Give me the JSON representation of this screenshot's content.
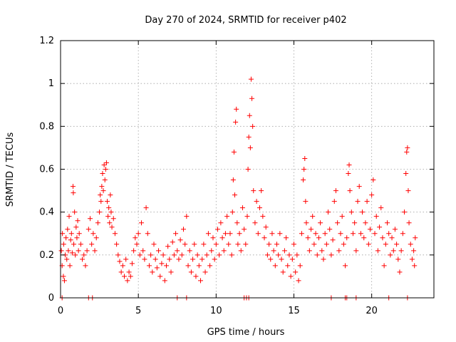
{
  "chart_data": {
    "type": "scatter",
    "title": "Day 270 of 2024, SRMTID for receiver p402",
    "xlabel": "GPS time / hours",
    "ylabel": "SRMTID / TECUs",
    "xlim": [
      0,
      24
    ],
    "ylim": [
      0,
      1.2
    ],
    "x_ticks": [
      0,
      5,
      10,
      15,
      20
    ],
    "x_tick_labels": [
      "0",
      "5",
      "10",
      "15",
      "20"
    ],
    "y_ticks": [
      0,
      0.2,
      0.4,
      0.6,
      0.8,
      1.0,
      1.2
    ],
    "y_tick_labels": [
      "0",
      "0.2",
      "0.4",
      "0.6",
      "0.8",
      "1",
      "1.2"
    ],
    "grid": true,
    "marker": "+",
    "series": [
      {
        "name": "SRMTID",
        "color": "#ff0000",
        "points": [
          [
            0.05,
            0.22
          ],
          [
            0.1,
            0.15
          ],
          [
            0.12,
            0.3
          ],
          [
            0.18,
            0.1
          ],
          [
            0.2,
            0.25
          ],
          [
            0.25,
            0.08
          ],
          [
            0.3,
            0.2
          ],
          [
            0.35,
            0.28
          ],
          [
            0.4,
            0.18
          ],
          [
            0.45,
            0.32
          ],
          [
            0.5,
            0.22
          ],
          [
            0.55,
            0.38
          ],
          [
            0.6,
            0.15
          ],
          [
            0.65,
            0.27
          ],
          [
            0.7,
            0.3
          ],
          [
            0.75,
            0.21
          ],
          [
            0.8,
            0.52
          ],
          [
            0.82,
            0.49
          ],
          [
            0.85,
            0.25
          ],
          [
            0.9,
            0.4
          ],
          [
            0.95,
            0.2
          ],
          [
            1.0,
            0.33
          ],
          [
            1.05,
            0.28
          ],
          [
            1.1,
            0.36
          ],
          [
            1.15,
            0.22
          ],
          [
            1.2,
            0.3
          ],
          [
            1.3,
            0.25
          ],
          [
            1.4,
            0.18
          ],
          [
            1.5,
            0.2
          ],
          [
            1.6,
            0.15
          ],
          [
            1.7,
            0.22
          ],
          [
            1.8,
            0.32
          ],
          [
            1.9,
            0.37
          ],
          [
            2.0,
            0.25
          ],
          [
            2.1,
            0.3
          ],
          [
            2.2,
            0.22
          ],
          [
            2.3,
            0.28
          ],
          [
            2.4,
            0.35
          ],
          [
            2.5,
            0.4
          ],
          [
            2.55,
            0.48
          ],
          [
            2.6,
            0.45
          ],
          [
            2.65,
            0.52
          ],
          [
            2.7,
            0.58
          ],
          [
            2.75,
            0.5
          ],
          [
            2.8,
            0.62
          ],
          [
            2.85,
            0.55
          ],
          [
            2.9,
            0.6
          ],
          [
            2.95,
            0.63
          ],
          [
            3.0,
            0.45
          ],
          [
            3.05,
            0.38
          ],
          [
            3.1,
            0.42
          ],
          [
            3.15,
            0.35
          ],
          [
            3.2,
            0.48
          ],
          [
            3.25,
            0.4
          ],
          [
            3.3,
            0.33
          ],
          [
            3.4,
            0.37
          ],
          [
            3.5,
            0.3
          ],
          [
            3.6,
            0.25
          ],
          [
            3.7,
            0.2
          ],
          [
            3.8,
            0.17
          ],
          [
            3.9,
            0.12
          ],
          [
            4.0,
            0.15
          ],
          [
            4.1,
            0.1
          ],
          [
            4.2,
            0.18
          ],
          [
            4.3,
            0.08
          ],
          [
            4.4,
            0.12
          ],
          [
            4.5,
            0.1
          ],
          [
            4.6,
            0.16
          ],
          [
            4.7,
            0.22
          ],
          [
            4.8,
            0.28
          ],
          [
            4.9,
            0.25
          ],
          [
            5.0,
            0.3
          ],
          [
            5.1,
            0.2
          ],
          [
            5.2,
            0.35
          ],
          [
            5.3,
            0.22
          ],
          [
            5.4,
            0.18
          ],
          [
            5.5,
            0.42
          ],
          [
            5.6,
            0.3
          ],
          [
            5.7,
            0.15
          ],
          [
            5.8,
            0.2
          ],
          [
            5.9,
            0.12
          ],
          [
            6.0,
            0.25
          ],
          [
            6.1,
            0.18
          ],
          [
            6.2,
            0.14
          ],
          [
            6.3,
            0.22
          ],
          [
            6.4,
            0.1
          ],
          [
            6.5,
            0.16
          ],
          [
            6.6,
            0.2
          ],
          [
            6.7,
            0.08
          ],
          [
            6.8,
            0.15
          ],
          [
            6.9,
            0.24
          ],
          [
            7.0,
            0.18
          ],
          [
            7.1,
            0.12
          ],
          [
            7.2,
            0.26
          ],
          [
            7.3,
            0.2
          ],
          [
            7.4,
            0.3
          ],
          [
            7.5,
            0.22
          ],
          [
            7.6,
            0.18
          ],
          [
            7.7,
            0.27
          ],
          [
            7.8,
            0.2
          ],
          [
            7.9,
            0.32
          ],
          [
            8.0,
            0.25
          ],
          [
            8.1,
            0.38
          ],
          [
            8.2,
            0.15
          ],
          [
            8.3,
            0.22
          ],
          [
            8.4,
            0.12
          ],
          [
            8.5,
            0.18
          ],
          [
            8.6,
            0.25
          ],
          [
            8.7,
            0.1
          ],
          [
            8.8,
            0.2
          ],
          [
            8.9,
            0.15
          ],
          [
            9.0,
            0.08
          ],
          [
            9.1,
            0.18
          ],
          [
            9.2,
            0.25
          ],
          [
            9.3,
            0.12
          ],
          [
            9.4,
            0.2
          ],
          [
            9.5,
            0.3
          ],
          [
            9.6,
            0.15
          ],
          [
            9.7,
            0.22
          ],
          [
            9.8,
            0.28
          ],
          [
            9.9,
            0.18
          ],
          [
            10.0,
            0.25
          ],
          [
            10.1,
            0.32
          ],
          [
            10.2,
            0.2
          ],
          [
            10.3,
            0.35
          ],
          [
            10.4,
            0.28
          ],
          [
            10.5,
            0.22
          ],
          [
            10.6,
            0.3
          ],
          [
            10.7,
            0.38
          ],
          [
            10.8,
            0.25
          ],
          [
            10.9,
            0.3
          ],
          [
            11.0,
            0.2
          ],
          [
            11.05,
            0.4
          ],
          [
            11.1,
            0.55
          ],
          [
            11.15,
            0.68
          ],
          [
            11.2,
            0.48
          ],
          [
            11.25,
            0.82
          ],
          [
            11.3,
            0.88
          ],
          [
            11.35,
            0.35
          ],
          [
            11.4,
            0.25
          ],
          [
            11.5,
            0.3
          ],
          [
            11.6,
            0.22
          ],
          [
            11.7,
            0.42
          ],
          [
            11.8,
            0.32
          ],
          [
            11.9,
            0.25
          ],
          [
            12.0,
            0.38
          ],
          [
            12.05,
            0.6
          ],
          [
            12.1,
            0.75
          ],
          [
            12.15,
            0.85
          ],
          [
            12.2,
            0.7
          ],
          [
            12.25,
            1.02
          ],
          [
            12.3,
            0.93
          ],
          [
            12.35,
            0.8
          ],
          [
            12.4,
            0.5
          ],
          [
            12.5,
            0.35
          ],
          [
            12.6,
            0.45
          ],
          [
            12.7,
            0.3
          ],
          [
            12.8,
            0.42
          ],
          [
            12.9,
            0.5
          ],
          [
            13.0,
            0.38
          ],
          [
            13.1,
            0.28
          ],
          [
            13.2,
            0.33
          ],
          [
            13.3,
            0.2
          ],
          [
            13.4,
            0.25
          ],
          [
            13.5,
            0.18
          ],
          [
            13.6,
            0.3
          ],
          [
            13.7,
            0.22
          ],
          [
            13.8,
            0.15
          ],
          [
            13.9,
            0.25
          ],
          [
            14.0,
            0.2
          ],
          [
            14.1,
            0.3
          ],
          [
            14.2,
            0.18
          ],
          [
            14.3,
            0.12
          ],
          [
            14.4,
            0.22
          ],
          [
            14.5,
            0.28
          ],
          [
            14.6,
            0.15
          ],
          [
            14.7,
            0.2
          ],
          [
            14.8,
            0.1
          ],
          [
            14.9,
            0.18
          ],
          [
            15.0,
            0.25
          ],
          [
            15.1,
            0.12
          ],
          [
            15.2,
            0.2
          ],
          [
            15.3,
            0.08
          ],
          [
            15.4,
            0.15
          ],
          [
            15.5,
            0.3
          ],
          [
            15.6,
            0.55
          ],
          [
            15.65,
            0.6
          ],
          [
            15.7,
            0.65
          ],
          [
            15.75,
            0.45
          ],
          [
            15.8,
            0.35
          ],
          [
            15.9,
            0.28
          ],
          [
            16.0,
            0.22
          ],
          [
            16.1,
            0.32
          ],
          [
            16.2,
            0.38
          ],
          [
            16.3,
            0.25
          ],
          [
            16.4,
            0.3
          ],
          [
            16.5,
            0.2
          ],
          [
            16.6,
            0.28
          ],
          [
            16.7,
            0.35
          ],
          [
            16.8,
            0.22
          ],
          [
            16.9,
            0.18
          ],
          [
            17.0,
            0.3
          ],
          [
            17.1,
            0.25
          ],
          [
            17.2,
            0.4
          ],
          [
            17.3,
            0.32
          ],
          [
            17.4,
            0.2
          ],
          [
            17.5,
            0.27
          ],
          [
            17.6,
            0.45
          ],
          [
            17.7,
            0.5
          ],
          [
            17.8,
            0.35
          ],
          [
            17.9,
            0.22
          ],
          [
            18.0,
            0.3
          ],
          [
            18.1,
            0.38
          ],
          [
            18.2,
            0.25
          ],
          [
            18.3,
            0.15
          ],
          [
            18.4,
            0.28
          ],
          [
            18.5,
            0.58
          ],
          [
            18.55,
            0.62
          ],
          [
            18.6,
            0.5
          ],
          [
            18.7,
            0.4
          ],
          [
            18.8,
            0.3
          ],
          [
            18.9,
            0.35
          ],
          [
            19.0,
            0.22
          ],
          [
            19.1,
            0.45
          ],
          [
            19.2,
            0.52
          ],
          [
            19.3,
            0.3
          ],
          [
            19.4,
            0.4
          ],
          [
            19.5,
            0.28
          ],
          [
            19.6,
            0.35
          ],
          [
            19.7,
            0.45
          ],
          [
            19.8,
            0.25
          ],
          [
            19.9,
            0.32
          ],
          [
            20.0,
            0.48
          ],
          [
            20.1,
            0.55
          ],
          [
            20.2,
            0.3
          ],
          [
            20.3,
            0.38
          ],
          [
            20.4,
            0.22
          ],
          [
            20.5,
            0.33
          ],
          [
            20.6,
            0.42
          ],
          [
            20.7,
            0.28
          ],
          [
            20.8,
            0.15
          ],
          [
            20.9,
            0.25
          ],
          [
            21.0,
            0.35
          ],
          [
            21.1,
            0.3
          ],
          [
            21.2,
            0.2
          ],
          [
            21.3,
            0.28
          ],
          [
            21.4,
            0.22
          ],
          [
            21.5,
            0.32
          ],
          [
            21.6,
            0.25
          ],
          [
            21.7,
            0.18
          ],
          [
            21.8,
            0.12
          ],
          [
            21.9,
            0.22
          ],
          [
            22.0,
            0.3
          ],
          [
            22.1,
            0.4
          ],
          [
            22.2,
            0.58
          ],
          [
            22.25,
            0.68
          ],
          [
            22.3,
            0.7
          ],
          [
            22.35,
            0.5
          ],
          [
            22.4,
            0.35
          ],
          [
            22.5,
            0.25
          ],
          [
            22.6,
            0.18
          ],
          [
            22.7,
            0.22
          ],
          [
            22.75,
            0.15
          ],
          [
            22.8,
            0.28
          ],
          [
            0.1,
            0.0
          ],
          [
            1.8,
            0.0
          ],
          [
            2.05,
            0.0
          ],
          [
            7.5,
            0.0
          ],
          [
            8.1,
            0.0
          ],
          [
            11.8,
            0.0
          ],
          [
            11.95,
            0.0
          ],
          [
            12.1,
            0.0
          ],
          [
            17.4,
            0.0
          ],
          [
            18.3,
            0.0
          ],
          [
            18.4,
            0.0
          ],
          [
            19.0,
            0.0
          ],
          [
            21.1,
            0.0
          ],
          [
            22.3,
            0.0
          ]
        ]
      }
    ]
  }
}
